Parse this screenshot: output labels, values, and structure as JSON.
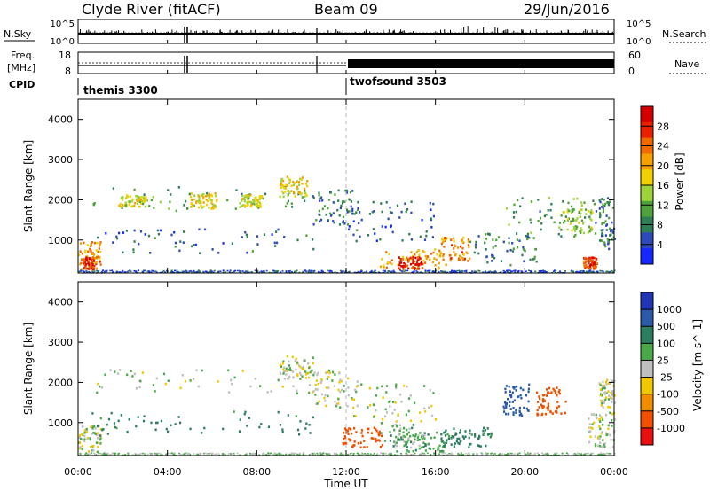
{
  "header": {
    "station": "Clyde River (fitACF)",
    "beam": "Beam 09",
    "date": "29/Jun/2016"
  },
  "noise_panel": {
    "left_label": "N.Sky",
    "right_label": "N.Search",
    "left_ticks": [
      "10^5",
      "10^0"
    ],
    "right_ticks": [
      "10^5",
      "10^0"
    ]
  },
  "freq_panel": {
    "left_label": "Freq.",
    "left_unit": "[MHz]",
    "right_label": "Nave",
    "left_ticks": [
      "18",
      "8"
    ],
    "right_ticks": [
      "60",
      "0"
    ]
  },
  "cpid": {
    "label": "CPID",
    "programs": [
      {
        "name": "themis 3300",
        "start_hour": 0
      },
      {
        "name": "twofsound 3503",
        "start_hour": 12
      }
    ]
  },
  "x_axis": {
    "label": "Time UT",
    "ticks": [
      "00:00",
      "04:00",
      "08:00",
      "12:00",
      "16:00",
      "20:00",
      "00:00"
    ],
    "range_hours": [
      0,
      24
    ]
  },
  "y_axis": {
    "label": "Slant Range [km]",
    "ticks": [
      "1000",
      "2000",
      "3000",
      "4000"
    ],
    "range_km": [
      180,
      4500
    ]
  },
  "power_colorbar": {
    "label": "Power [dB]",
    "ticks": [
      "4",
      "8",
      "12",
      "16",
      "20",
      "24",
      "28"
    ],
    "colors": [
      "#1428ff",
      "#2e49b8",
      "#2f7d54",
      "#4fa13c",
      "#9ed23a",
      "#f0d000",
      "#f4a000",
      "#f06a00",
      "#e82000",
      "#d40000"
    ]
  },
  "velocity_colorbar": {
    "label": "Velocity [m s^-1]",
    "ticks": [
      "1000",
      "500",
      "100",
      "25",
      "-25",
      "-100",
      "-500",
      "-1000"
    ],
    "colors": [
      "#2036b4",
      "#2b5aa8",
      "#2d7d60",
      "#4aa84a",
      "#bfbfbf",
      "#f0c800",
      "#f08c00",
      "#f05000",
      "#e81010"
    ]
  },
  "chart_data": {
    "type": "heatmap",
    "x_unit": "hours UT",
    "y_unit": "km",
    "power_regions": [
      {
        "t": [
          0.6,
          11.5
        ],
        "r": [
          1750,
          2350
        ],
        "dB": 10
      },
      {
        "t": [
          1.8,
          3.0
        ],
        "r": [
          1850,
          2150
        ],
        "dB": 16
      },
      {
        "t": [
          5.0,
          6.2
        ],
        "r": [
          1800,
          2200
        ],
        "dB": 18
      },
      {
        "t": [
          7.2,
          8.2
        ],
        "r": [
          1850,
          2150
        ],
        "dB": 16
      },
      {
        "t": [
          9.0,
          10.3
        ],
        "r": [
          2100,
          2600
        ],
        "dB": 18
      },
      {
        "t": [
          0.0,
          1.0
        ],
        "r": [
          280,
          1000
        ],
        "dB": 22
      },
      {
        "t": [
          0.2,
          0.7
        ],
        "r": [
          300,
          600
        ],
        "dB": 28
      },
      {
        "t": [
          0.6,
          10.5
        ],
        "r": [
          700,
          1300
        ],
        "dB": 6
      },
      {
        "t": [
          10.5,
          12.5
        ],
        "r": [
          1400,
          2300
        ],
        "dB": 8
      },
      {
        "t": [
          12.0,
          16.0
        ],
        "r": [
          1000,
          2000
        ],
        "dB": 6
      },
      {
        "t": [
          13.5,
          16.5
        ],
        "r": [
          300,
          800
        ],
        "dB": 20
      },
      {
        "t": [
          14.3,
          15.5
        ],
        "r": [
          300,
          600
        ],
        "dB": 28
      },
      {
        "t": [
          16.2,
          17.5
        ],
        "r": [
          500,
          1100
        ],
        "dB": 22
      },
      {
        "t": [
          17.5,
          20.5
        ],
        "r": [
          400,
          1200
        ],
        "dB": 8
      },
      {
        "t": [
          19.0,
          23.5
        ],
        "r": [
          1100,
          2100
        ],
        "dB": 10
      },
      {
        "t": [
          21.5,
          23.0
        ],
        "r": [
          1200,
          1800
        ],
        "dB": 14
      },
      {
        "t": [
          22.6,
          23.2
        ],
        "r": [
          300,
          600
        ],
        "dB": 26
      },
      {
        "t": [
          23.3,
          24.0
        ],
        "r": [
          800,
          2100
        ],
        "dB": 8
      }
    ],
    "velocity_regions": [
      {
        "t": [
          0.6,
          11.5
        ],
        "r": [
          1750,
          2350
        ],
        "v": 0
      },
      {
        "t": [
          9.0,
          10.5
        ],
        "r": [
          2100,
          2700
        ],
        "v": 0
      },
      {
        "t": [
          0.0,
          1.0
        ],
        "r": [
          280,
          1000
        ],
        "v": 0
      },
      {
        "t": [
          0.6,
          10.5
        ],
        "r": [
          700,
          1300
        ],
        "v": 150
      },
      {
        "t": [
          10.5,
          12.5
        ],
        "r": [
          1400,
          2300
        ],
        "v": 0
      },
      {
        "t": [
          12.0,
          16.0
        ],
        "r": [
          1000,
          2000
        ],
        "v": 0
      },
      {
        "t": [
          11.8,
          13.6
        ],
        "r": [
          400,
          900
        ],
        "v": -400
      },
      {
        "t": [
          13.5,
          16.5
        ],
        "r": [
          300,
          800
        ],
        "v": 80
      },
      {
        "t": [
          14.0,
          15.5
        ],
        "r": [
          400,
          1000
        ],
        "v": 50
      },
      {
        "t": [
          16.2,
          18.5
        ],
        "r": [
          400,
          900
        ],
        "v": 150
      },
      {
        "t": [
          19.0,
          20.2
        ],
        "r": [
          1200,
          2000
        ],
        "v": 700
      },
      {
        "t": [
          20.5,
          21.8
        ],
        "r": [
          1200,
          1900
        ],
        "v": -600
      },
      {
        "t": [
          22.8,
          24.0
        ],
        "r": [
          400,
          1300
        ],
        "v": 0
      },
      {
        "t": [
          23.3,
          24.0
        ],
        "r": [
          1400,
          2100
        ],
        "v": 0
      }
    ]
  }
}
